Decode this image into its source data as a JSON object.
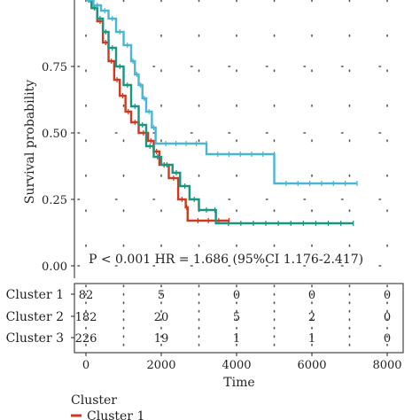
{
  "chart_data": {
    "type": "line",
    "subtype": "kaplan-meier",
    "ylabel": "Survival probability",
    "xlabel": "Time",
    "y_ticks": [
      "0.00",
      "0.25",
      "0.50",
      "0.75"
    ],
    "x_ticks": [
      "0",
      "2000",
      "4000",
      "6000",
      "8000"
    ],
    "xlim": [
      0,
      8000
    ],
    "ylim": [
      0,
      1
    ],
    "annotation": "P < 0.001 HR = 1.686 (95%CI 1.176-2.417)",
    "grid": "dotted",
    "series": [
      {
        "name": "Cluster 1",
        "color": "#d0391f",
        "points": [
          [
            0,
            1.0
          ],
          [
            150,
            0.97
          ],
          [
            300,
            0.92
          ],
          [
            450,
            0.84
          ],
          [
            600,
            0.77
          ],
          [
            750,
            0.7
          ],
          [
            900,
            0.64
          ],
          [
            1050,
            0.58
          ],
          [
            1200,
            0.54
          ],
          [
            1400,
            0.5
          ],
          [
            1650,
            0.47
          ],
          [
            1800,
            0.43
          ],
          [
            1950,
            0.38
          ],
          [
            2200,
            0.33
          ],
          [
            2450,
            0.25
          ],
          [
            2650,
            0.22
          ],
          [
            2700,
            0.17
          ],
          [
            3800,
            0.17
          ]
        ]
      },
      {
        "name": "Cluster 2",
        "color": "#1a9580",
        "points": [
          [
            0,
            1.0
          ],
          [
            150,
            0.97
          ],
          [
            300,
            0.93
          ],
          [
            450,
            0.88
          ],
          [
            600,
            0.82
          ],
          [
            800,
            0.75
          ],
          [
            1000,
            0.68
          ],
          [
            1200,
            0.6
          ],
          [
            1400,
            0.53
          ],
          [
            1600,
            0.45
          ],
          [
            1800,
            0.41
          ],
          [
            2000,
            0.38
          ],
          [
            2300,
            0.35
          ],
          [
            2500,
            0.3
          ],
          [
            2750,
            0.25
          ],
          [
            3000,
            0.21
          ],
          [
            3400,
            0.21
          ],
          [
            3450,
            0.16
          ],
          [
            7100,
            0.16
          ]
        ]
      },
      {
        "name": "Cluster 3",
        "color": "#4bb5d3",
        "points": [
          [
            0,
            1.0
          ],
          [
            200,
            0.98
          ],
          [
            400,
            0.96
          ],
          [
            600,
            0.93
          ],
          [
            800,
            0.88
          ],
          [
            1000,
            0.83
          ],
          [
            1200,
            0.77
          ],
          [
            1300,
            0.72
          ],
          [
            1400,
            0.68
          ],
          [
            1500,
            0.63
          ],
          [
            1600,
            0.58
          ],
          [
            1750,
            0.52
          ],
          [
            1850,
            0.46
          ],
          [
            3200,
            0.46
          ],
          [
            3200,
            0.42
          ],
          [
            5000,
            0.42
          ],
          [
            5000,
            0.31
          ],
          [
            7200,
            0.31
          ]
        ]
      }
    ]
  },
  "risk_table": {
    "rows": [
      {
        "label": "Cluster 1",
        "values": [
          "82",
          "5",
          "0",
          "0",
          "0"
        ]
      },
      {
        "label": "Cluster 2",
        "values": [
          "182",
          "20",
          "5",
          "2",
          "0"
        ]
      },
      {
        "label": "Cluster 3",
        "values": [
          "226",
          "19",
          "1",
          "1",
          "0"
        ]
      }
    ]
  },
  "legend": {
    "title": "Cluster",
    "items": [
      "Cluster 1"
    ]
  }
}
